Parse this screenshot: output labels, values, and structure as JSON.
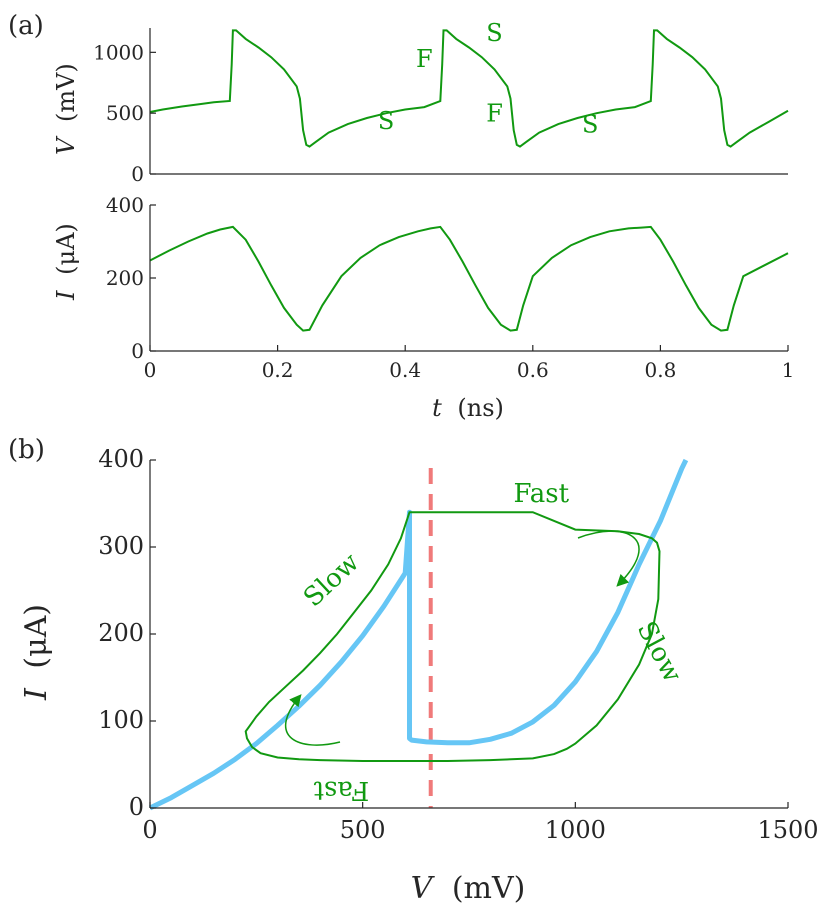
{
  "colors": {
    "trace": "#119911",
    "nullcline": "#66c6f5",
    "threshold": "#f07a7a",
    "axis": "#262626"
  },
  "chart_data": [
    {
      "id": "a-top",
      "type": "line",
      "panel_label": "(a)",
      "ylabel_var": "V",
      "ylabel_unit": "(mV)",
      "xlim": [
        0,
        1
      ],
      "ylim": [
        0,
        1200
      ],
      "yticks": [
        0,
        500,
        1000
      ],
      "ytick_labels": [
        "0",
        "500",
        "1000"
      ],
      "series": [
        {
          "name": "V(t)",
          "x": [
            0,
            0.02,
            0.05,
            0.08,
            0.1,
            0.125,
            0.128,
            0.13,
            0.135,
            0.15,
            0.17,
            0.19,
            0.21,
            0.23,
            0.235,
            0.24,
            0.245,
            0.25,
            0.26,
            0.28,
            0.31,
            0.34,
            0.37,
            0.4,
            0.43,
            0.455,
            0.458,
            0.46,
            0.465,
            0.48,
            0.5,
            0.52,
            0.54,
            0.56,
            0.565,
            0.57,
            0.575,
            0.58,
            0.59,
            0.61,
            0.64,
            0.67,
            0.7,
            0.73,
            0.76,
            0.785,
            0.788,
            0.79,
            0.795,
            0.81,
            0.83,
            0.85,
            0.87,
            0.89,
            0.895,
            0.9,
            0.905,
            0.91,
            0.92,
            0.94,
            0.97,
            1.0
          ],
          "values": [
            510,
            530,
            555,
            575,
            590,
            600,
            900,
            1180,
            1180,
            1110,
            1040,
            960,
            860,
            720,
            620,
            360,
            240,
            225,
            265,
            340,
            410,
            460,
            500,
            530,
            550,
            600,
            900,
            1180,
            1180,
            1110,
            1040,
            960,
            860,
            720,
            620,
            360,
            240,
            225,
            265,
            340,
            410,
            460,
            500,
            530,
            550,
            600,
            900,
            1180,
            1180,
            1110,
            1040,
            960,
            860,
            720,
            620,
            360,
            240,
            225,
            265,
            340,
            430,
            520
          ]
        }
      ],
      "annotations": [
        {
          "text": "F",
          "x": 0.43,
          "y": 880
        },
        {
          "text": "S",
          "x": 0.54,
          "y": 1095
        },
        {
          "text": "F",
          "x": 0.54,
          "y": 430
        },
        {
          "text": "S",
          "x": 0.37,
          "y": 370
        },
        {
          "text": "S",
          "x": 0.69,
          "y": 340
        }
      ]
    },
    {
      "id": "a-bottom",
      "type": "line",
      "ylabel_var": "I",
      "ylabel_unit": "(μA)",
      "xlabel_var": "t",
      "xlabel_unit": "(ns)",
      "xlim": [
        0,
        1
      ],
      "ylim": [
        0,
        400
      ],
      "xticks": [
        0,
        0.2,
        0.4,
        0.6,
        0.8,
        1
      ],
      "xtick_labels": [
        "0",
        "0.2",
        "0.4",
        "0.6",
        "0.8",
        "1"
      ],
      "yticks": [
        0,
        200,
        400
      ],
      "ytick_labels": [
        "0",
        "200",
        "400"
      ],
      "series": [
        {
          "name": "I(t)",
          "x": [
            0,
            0.03,
            0.06,
            0.09,
            0.11,
            0.13,
            0.15,
            0.17,
            0.19,
            0.21,
            0.23,
            0.24,
            0.25,
            0.27,
            0.3,
            0.33,
            0.36,
            0.39,
            0.42,
            0.44,
            0.455,
            0.47,
            0.49,
            0.51,
            0.53,
            0.55,
            0.565,
            0.575,
            0.585,
            0.6,
            0.63,
            0.66,
            0.69,
            0.72,
            0.75,
            0.77,
            0.785,
            0.8,
            0.82,
            0.84,
            0.86,
            0.88,
            0.895,
            0.905,
            0.915,
            0.93,
            0.96,
            1.0
          ],
          "values": [
            248,
            275,
            300,
            322,
            333,
            340,
            305,
            245,
            180,
            118,
            72,
            56,
            58,
            125,
            205,
            255,
            290,
            312,
            328,
            336,
            340,
            305,
            245,
            180,
            118,
            72,
            56,
            58,
            125,
            205,
            255,
            290,
            312,
            328,
            336,
            338,
            340,
            305,
            245,
            180,
            118,
            72,
            56,
            58,
            125,
            205,
            232,
            268
          ]
        }
      ]
    },
    {
      "id": "b",
      "type": "line",
      "panel_label": "(b)",
      "ylabel_var": "I",
      "ylabel_unit": "(μA)",
      "xlabel_var": "V",
      "xlabel_unit": "(mV)",
      "xlim": [
        0,
        1500
      ],
      "ylim": [
        0,
        400
      ],
      "xticks": [
        0,
        500,
        1000,
        1500
      ],
      "xtick_labels": [
        "0",
        "500",
        "1000",
        "1500"
      ],
      "yticks": [
        0,
        100,
        200,
        300,
        400
      ],
      "ytick_labels": [
        "0",
        "100",
        "200",
        "300",
        "400"
      ],
      "threshold_v": 660,
      "series": [
        {
          "name": "nullcline",
          "x": [
            0,
            50,
            100,
            150,
            200,
            250,
            300,
            350,
            400,
            450,
            500,
            550,
            600,
            610,
            610,
            615,
            650,
            700,
            750,
            800,
            850,
            900,
            950,
            1000,
            1050,
            1100,
            1150,
            1200,
            1250,
            1260
          ],
          "values": [
            0,
            12,
            26,
            40,
            56,
            74,
            95,
            117,
            141,
            168,
            198,
            232,
            270,
            340,
            80,
            78,
            76,
            75,
            75,
            79,
            86,
            99,
            118,
            145,
            180,
            225,
            280,
            330,
            390,
            400
          ]
        },
        {
          "name": "limit-cycle",
          "x": [
            610,
            590,
            560,
            520,
            480,
            440,
            400,
            360,
            320,
            280,
            250,
            235,
            225,
            228,
            240,
            260,
            300,
            350,
            400,
            500,
            600,
            700,
            800,
            900,
            950,
            980,
            1000,
            1050,
            1100,
            1150,
            1180,
            1195,
            1198,
            1192,
            1180,
            1150,
            1100,
            1000,
            900,
            800,
            700,
            610
          ],
          "values": [
            340,
            310,
            280,
            250,
            225,
            200,
            178,
            158,
            140,
            122,
            105,
            95,
            88,
            80,
            70,
            63,
            58,
            56,
            55,
            54,
            54,
            54,
            55,
            57,
            62,
            68,
            74,
            95,
            125,
            165,
            200,
            240,
            295,
            305,
            310,
            315,
            318,
            320,
            340,
            340,
            340,
            340
          ]
        }
      ],
      "annotations": [
        {
          "text": "Fast",
          "x": 920,
          "y": 352,
          "rotate": 0
        },
        {
          "text": "Slow",
          "x": 440,
          "y": 255,
          "rotate": -43
        },
        {
          "text": "Slow",
          "x": 1180,
          "y": 175,
          "rotate": 62
        },
        {
          "text": "Fast",
          "x": 450,
          "y": 30,
          "rotate": 180
        }
      ]
    }
  ]
}
